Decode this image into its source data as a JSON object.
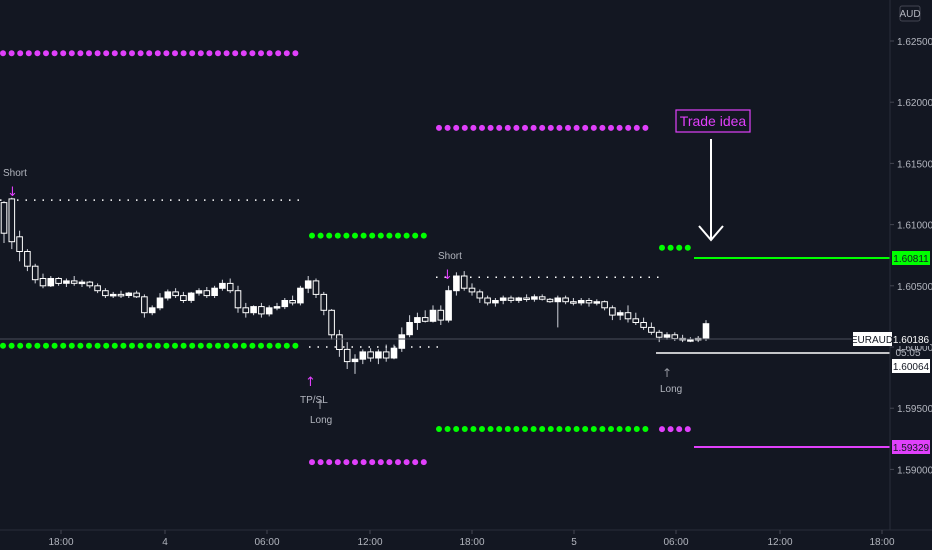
{
  "chart_data": {
    "type": "candlestick",
    "symbol": "EURAUD",
    "currency": "AUD",
    "countdown": "05:05",
    "x_ticks": [
      "18:00",
      "4",
      "06:00",
      "12:00",
      "18:00",
      "5",
      "06:00",
      "12:00",
      "18:00"
    ],
    "y_ticks": [
      "1.62500",
      "1.62000",
      "1.61500",
      "1.61000",
      "1.60500",
      "1.60000",
      "1.59500",
      "1.59000"
    ],
    "ylim": [
      1.588,
      1.629
    ],
    "price_tags": {
      "current": "1.60186",
      "close": "1.60064",
      "target": "1.60811",
      "stop": "1.59329"
    },
    "annotations": {
      "short_1": "Short",
      "short_2": "Short",
      "long_1": "Long",
      "long_2": "Long",
      "tpsl": "TP/SL",
      "trade_idea": "Trade idea"
    },
    "levels": [
      {
        "color": "#e040fb",
        "price": 1.624,
        "x0": 0,
        "x1": 303,
        "style": "dots"
      },
      {
        "color": "#00ff00",
        "price": 1.6001,
        "x0": 0,
        "x1": 303,
        "style": "dots"
      },
      {
        "color": "#ffffff",
        "price": 1.612,
        "x0": 0,
        "x1": 303,
        "style": "fine"
      },
      {
        "color": "#00ff00",
        "price": 1.6091,
        "x0": 309,
        "x1": 430,
        "style": "dots"
      },
      {
        "color": "#e040fb",
        "price": 1.5906,
        "x0": 309,
        "x1": 430,
        "style": "dots"
      },
      {
        "color": "#ffffff",
        "price": 1.6,
        "x0": 309,
        "x1": 440,
        "style": "fine"
      },
      {
        "color": "#e040fb",
        "price": 1.6179,
        "x0": 436,
        "x1": 652,
        "style": "dots"
      },
      {
        "color": "#00ff00",
        "price": 1.5933,
        "x0": 436,
        "x1": 652,
        "style": "dots"
      },
      {
        "color": "#ffffff",
        "price": 1.6057,
        "x0": 436,
        "x1": 660,
        "style": "fine"
      },
      {
        "color": "#00ff00",
        "price": 1.60811,
        "x0": 659,
        "x1": 694,
        "style": "dots"
      },
      {
        "color": "#e040fb",
        "price": 1.59329,
        "x0": 659,
        "x1": 694,
        "style": "dots"
      }
    ],
    "candles": [
      [
        1.6118,
        1.6119,
        1.6085,
        1.6093
      ],
      [
        1.6121,
        1.6122,
        1.608,
        1.6086
      ],
      [
        1.609,
        1.6095,
        1.607,
        1.6078
      ],
      [
        1.6078,
        1.608,
        1.6062,
        1.6066
      ],
      [
        1.6066,
        1.6068,
        1.6052,
        1.6055
      ],
      [
        1.6056,
        1.606,
        1.6048,
        1.605
      ],
      [
        1.605,
        1.6058,
        1.6049,
        1.6056
      ],
      [
        1.6056,
        1.6057,
        1.605,
        1.6052
      ],
      [
        1.6052,
        1.6056,
        1.6049,
        1.6054
      ],
      [
        1.6054,
        1.6058,
        1.605,
        1.6052
      ],
      [
        1.6052,
        1.6055,
        1.6049,
        1.6053
      ],
      [
        1.6053,
        1.6054,
        1.6048,
        1.605
      ],
      [
        1.605,
        1.6052,
        1.6044,
        1.6046
      ],
      [
        1.6046,
        1.6048,
        1.604,
        1.6042
      ],
      [
        1.6042,
        1.6045,
        1.604,
        1.6043
      ],
      [
        1.6043,
        1.6046,
        1.604,
        1.6042
      ],
      [
        1.6042,
        1.6045,
        1.604,
        1.6044
      ],
      [
        1.6044,
        1.6046,
        1.604,
        1.6041
      ],
      [
        1.6041,
        1.6043,
        1.6024,
        1.6028
      ],
      [
        1.6028,
        1.6034,
        1.6026,
        1.6032
      ],
      [
        1.6032,
        1.6044,
        1.603,
        1.604
      ],
      [
        1.604,
        1.6047,
        1.6038,
        1.6045
      ],
      [
        1.6045,
        1.6048,
        1.604,
        1.6042
      ],
      [
        1.6042,
        1.6045,
        1.6036,
        1.6038
      ],
      [
        1.6038,
        1.6045,
        1.6036,
        1.6044
      ],
      [
        1.6044,
        1.6048,
        1.6042,
        1.6046
      ],
      [
        1.6046,
        1.6049,
        1.604,
        1.6042
      ],
      [
        1.6042,
        1.605,
        1.604,
        1.6048
      ],
      [
        1.6048,
        1.6055,
        1.6046,
        1.6052
      ],
      [
        1.6052,
        1.6056,
        1.6044,
        1.6046
      ],
      [
        1.6046,
        1.605,
        1.6028,
        1.6032
      ],
      [
        1.6032,
        1.6036,
        1.6024,
        1.6028
      ],
      [
        1.6028,
        1.6034,
        1.6026,
        1.6033
      ],
      [
        1.6033,
        1.6036,
        1.6024,
        1.6027
      ],
      [
        1.6027,
        1.6034,
        1.6025,
        1.6032
      ],
      [
        1.6032,
        1.6036,
        1.603,
        1.6033
      ],
      [
        1.6033,
        1.604,
        1.6031,
        1.6038
      ],
      [
        1.6038,
        1.6042,
        1.6034,
        1.6036
      ],
      [
        1.6036,
        1.605,
        1.6034,
        1.6048
      ],
      [
        1.6048,
        1.6058,
        1.6044,
        1.6054
      ],
      [
        1.6054,
        1.6056,
        1.604,
        1.6043
      ],
      [
        1.6043,
        1.6045,
        1.6026,
        1.603
      ],
      [
        1.603,
        1.6031,
        1.6006,
        1.601
      ],
      [
        1.601,
        1.6014,
        1.5992,
        1.5998
      ],
      [
        1.5998,
        1.6004,
        1.5982,
        1.5988
      ],
      [
        1.5988,
        1.5994,
        1.5978,
        1.599
      ],
      [
        1.599,
        1.5998,
        1.5986,
        1.5996
      ],
      [
        1.5996,
        1.5999,
        1.5988,
        1.5991
      ],
      [
        1.5991,
        1.5998,
        1.5986,
        1.5996
      ],
      [
        1.5996,
        1.6002,
        1.5988,
        1.5991
      ],
      [
        1.5991,
        1.6002,
        1.599,
        1.5999
      ],
      [
        1.5999,
        1.6016,
        1.5996,
        1.601
      ],
      [
        1.601,
        1.6026,
        1.6008,
        1.602
      ],
      [
        1.602,
        1.6028,
        1.6014,
        1.6024
      ],
      [
        1.6024,
        1.603,
        1.602,
        1.6021
      ],
      [
        1.6021,
        1.6034,
        1.602,
        1.603
      ],
      [
        1.603,
        1.6034,
        1.6018,
        1.6022
      ],
      [
        1.6022,
        1.605,
        1.602,
        1.6046
      ],
      [
        1.6046,
        1.6061,
        1.6042,
        1.6058
      ],
      [
        1.6058,
        1.6062,
        1.6046,
        1.6048
      ],
      [
        1.6048,
        1.6052,
        1.6042,
        1.6045
      ],
      [
        1.6045,
        1.6047,
        1.6036,
        1.604
      ],
      [
        1.604,
        1.6042,
        1.6034,
        1.6036
      ],
      [
        1.6036,
        1.604,
        1.6033,
        1.6038
      ],
      [
        1.6038,
        1.6042,
        1.6035,
        1.604
      ],
      [
        1.604,
        1.6042,
        1.6036,
        1.6038
      ],
      [
        1.6038,
        1.6041,
        1.6036,
        1.604
      ],
      [
        1.604,
        1.6043,
        1.6037,
        1.6039
      ],
      [
        1.6039,
        1.6043,
        1.6037,
        1.6041
      ],
      [
        1.6041,
        1.6043,
        1.6038,
        1.6039
      ],
      [
        1.6039,
        1.604,
        1.6036,
        1.6037
      ],
      [
        1.6037,
        1.6042,
        1.6016,
        1.604
      ],
      [
        1.604,
        1.6042,
        1.6035,
        1.6037
      ],
      [
        1.6037,
        1.604,
        1.6034,
        1.6036
      ],
      [
        1.6036,
        1.604,
        1.6034,
        1.6038
      ],
      [
        1.6038,
        1.604,
        1.6033,
        1.6036
      ],
      [
        1.6036,
        1.6039,
        1.6034,
        1.6037
      ],
      [
        1.6037,
        1.6038,
        1.603,
        1.6032
      ],
      [
        1.6032,
        1.6034,
        1.6022,
        1.6026
      ],
      [
        1.6026,
        1.603,
        1.6022,
        1.6028
      ],
      [
        1.6028,
        1.6034,
        1.602,
        1.6023
      ],
      [
        1.6023,
        1.6028,
        1.6018,
        1.602
      ],
      [
        1.602,
        1.6024,
        1.6014,
        1.6016
      ],
      [
        1.6016,
        1.602,
        1.601,
        1.6012
      ],
      [
        1.6012,
        1.6014,
        1.6004,
        1.6008
      ],
      [
        1.6008,
        1.6012,
        1.6006,
        1.601
      ],
      [
        1.601,
        1.6012,
        1.6005,
        1.6007
      ],
      [
        1.6007,
        1.601,
        1.6004,
        1.6006
      ],
      [
        1.6006,
        1.6008,
        1.6004,
        1.6006
      ],
      [
        1.6006,
        1.6009,
        1.6004,
        1.6007
      ],
      [
        1.6007,
        1.6022,
        1.6005,
        1.6019
      ]
    ]
  }
}
